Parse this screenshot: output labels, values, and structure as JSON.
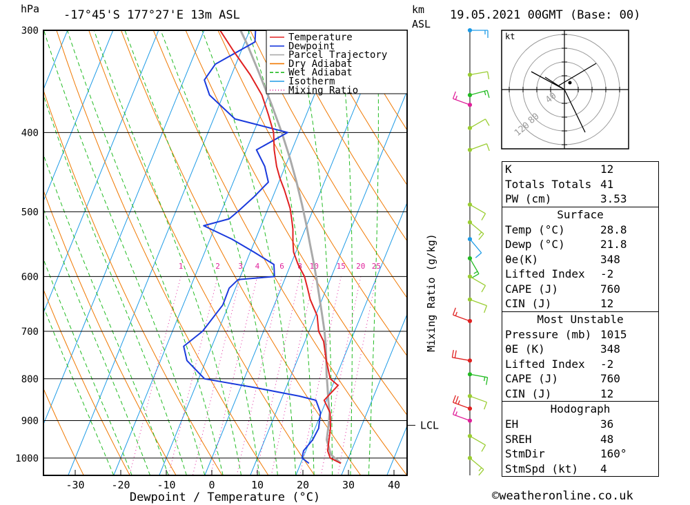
{
  "header": {
    "unit_hpa": "hPa",
    "location": "-17°45'S  177°27'E  13m  ASL",
    "km_label": "km",
    "asl_label": "ASL",
    "datetime": "19.05.2021  00GMT  (Base: 00)"
  },
  "credit": "©weatheronline.co.uk",
  "colors": {
    "temperature": "#e02020",
    "dewpoint": "#1a3adc",
    "parcel": "#aaaaaa",
    "dry_adiabat": "#f07800",
    "wet_adiabat": "#22bb22",
    "isotherm": "#1e9be6",
    "mixing_ratio": "#e0209a"
  },
  "chart_data": {
    "type": "line",
    "title": "-17°45'S 177°27'E 13m ASL 19.05.2021 00GMT (Base: 00)",
    "xlabel": "Dewpoint / Temperature (°C)",
    "ylabel": "hPa",
    "right_axis_label": "Mixing Ratio (g/kg)",
    "x_ticks": [
      -30,
      -20,
      -10,
      0,
      10,
      20,
      30,
      40
    ],
    "xlim": [
      -38,
      43
    ],
    "y_ticks": [
      300,
      400,
      500,
      600,
      700,
      800,
      900,
      1000
    ],
    "ylim": [
      300,
      1050
    ],
    "mixing_ratio_labels": [
      "1",
      "2",
      "3",
      "4",
      "6",
      "8",
      "10",
      "15",
      "20",
      "25"
    ],
    "legend": [
      "Temperature",
      "Dewpoint",
      "Parcel Trajectory",
      "Dry Adiabat",
      "Wet Adiabat",
      "Isotherm",
      "Mixing Ratio"
    ],
    "lcl_label": "LCL",
    "lcl_pressure": 912,
    "series": [
      {
        "name": "Temperature",
        "points": [
          [
            28.8,
            1015
          ],
          [
            26,
            1000
          ],
          [
            24.8,
            980
          ],
          [
            24.1,
            950
          ],
          [
            23.4,
            920
          ],
          [
            21.9,
            880
          ],
          [
            19.5,
            850
          ],
          [
            20.2,
            835
          ],
          [
            21.2,
            815
          ],
          [
            18.9,
            800
          ],
          [
            16.4,
            760
          ],
          [
            14.1,
            720
          ],
          [
            12.1,
            700
          ],
          [
            10.4,
            670
          ],
          [
            7.4,
            640
          ],
          [
            5.8,
            620
          ],
          [
            4.1,
            600
          ],
          [
            1.6,
            580
          ],
          [
            -0.5,
            560
          ],
          [
            -1.5,
            545
          ],
          [
            -2.1,
            535
          ],
          [
            -2.7,
            525
          ],
          [
            -3.9,
            510
          ],
          [
            -5.2,
            495
          ],
          [
            -8.1,
            470
          ],
          [
            -10.1,
            455
          ],
          [
            -11.9,
            440
          ],
          [
            -13.9,
            420
          ],
          [
            -15.6,
            400
          ],
          [
            -18.4,
            380
          ],
          [
            -21.5,
            360
          ],
          [
            -25.9,
            340
          ],
          [
            -31.7,
            318
          ],
          [
            -36.5,
            300
          ]
        ]
      },
      {
        "name": "Dewpoint",
        "points": [
          [
            21.8,
            1015
          ],
          [
            19.8,
            1000
          ],
          [
            19.5,
            980
          ],
          [
            20.5,
            950
          ],
          [
            20.8,
            920
          ],
          [
            19.8,
            880
          ],
          [
            17.7,
            850
          ],
          [
            13.6,
            840
          ],
          [
            3.1,
            820
          ],
          [
            -8.7,
            800
          ],
          [
            -14.2,
            760
          ],
          [
            -16.2,
            730
          ],
          [
            -13.4,
            700
          ],
          [
            -11.3,
            650
          ],
          [
            -11.4,
            620
          ],
          [
            -10.2,
            605
          ],
          [
            -2.5,
            600
          ],
          [
            -3.7,
            580
          ],
          [
            -9.2,
            560
          ],
          [
            -15.2,
            540
          ],
          [
            -22.6,
            520
          ],
          [
            -17.6,
            510
          ],
          [
            -16.4,
            500
          ],
          [
            -14.2,
            480
          ],
          [
            -12.3,
            460
          ],
          [
            -14.5,
            440
          ],
          [
            -17.8,
            420
          ],
          [
            -12.5,
            400
          ],
          [
            -25.3,
            385
          ],
          [
            -33.0,
            360
          ],
          [
            -35.5,
            345
          ],
          [
            -34.5,
            330
          ],
          [
            -27.8,
            310
          ],
          [
            -28.7,
            300
          ]
        ]
      },
      {
        "name": "Parcel Trajectory",
        "points": [
          [
            28.8,
            1015
          ],
          [
            25.8,
            990
          ],
          [
            23.6,
            950
          ],
          [
            22.7,
            912
          ],
          [
            21.8,
            880
          ],
          [
            20.4,
            850
          ],
          [
            19.1,
            820
          ],
          [
            17.7,
            790
          ],
          [
            16.4,
            760
          ],
          [
            15.0,
            730
          ],
          [
            13.4,
            700
          ],
          [
            11.5,
            670
          ],
          [
            9.5,
            640
          ],
          [
            7.4,
            610
          ],
          [
            5.1,
            580
          ],
          [
            2.6,
            550
          ],
          [
            0.0,
            520
          ],
          [
            -2.9,
            490
          ],
          [
            -6.1,
            460
          ],
          [
            -9.7,
            430
          ],
          [
            -13.8,
            400
          ],
          [
            -18.5,
            370
          ],
          [
            -23.8,
            340
          ],
          [
            -29.3,
            312
          ],
          [
            -32.0,
            300
          ]
        ]
      }
    ],
    "hodograph": {
      "unit": "kt",
      "ring_labels": [
        "40",
        "80",
        "120"
      ],
      "segments": [
        [
          [
            0,
            0
          ],
          [
            -48,
            26
          ]
        ],
        [
          [
            -8,
            6
          ],
          [
            46,
            38
          ]
        ],
        [
          [
            0,
            0
          ],
          [
            30,
            -62
          ]
        ],
        [
          [
            0,
            0
          ],
          [
            -28,
            18
          ]
        ]
      ]
    },
    "wind_barbs": [
      {
        "p": 300,
        "color": "#1e9be6",
        "speed": 15,
        "dir": 90
      },
      {
        "p": 340,
        "color": "#9acd32",
        "speed": 10,
        "dir": 80
      },
      {
        "p": 360,
        "color": "#22bb22",
        "speed": 15,
        "dir": 75
      },
      {
        "p": 370,
        "color": "#e0209a",
        "speed": 15,
        "dir": 290
      },
      {
        "p": 395,
        "color": "#9acd32",
        "speed": 10,
        "dir": 60
      },
      {
        "p": 420,
        "color": "#9acd32",
        "speed": 10,
        "dir": 70
      },
      {
        "p": 490,
        "color": "#9acd32",
        "speed": 10,
        "dir": 120
      },
      {
        "p": 515,
        "color": "#9acd32",
        "speed": 15,
        "dir": 130
      },
      {
        "p": 540,
        "color": "#1e9be6",
        "speed": 10,
        "dir": 140
      },
      {
        "p": 570,
        "color": "#22bb22",
        "speed": 15,
        "dir": 150
      },
      {
        "p": 600,
        "color": "#9acd32",
        "speed": 10,
        "dir": 120
      },
      {
        "p": 640,
        "color": "#9acd32",
        "speed": 10,
        "dir": 110
      },
      {
        "p": 680,
        "color": "#e02020",
        "speed": 15,
        "dir": 290
      },
      {
        "p": 760,
        "color": "#e02020",
        "speed": 20,
        "dir": 280
      },
      {
        "p": 790,
        "color": "#22bb22",
        "speed": 15,
        "dir": 100
      },
      {
        "p": 840,
        "color": "#9acd32",
        "speed": 10,
        "dir": 110
      },
      {
        "p": 870,
        "color": "#e02020",
        "speed": 25,
        "dir": 290
      },
      {
        "p": 900,
        "color": "#e0209a",
        "speed": 15,
        "dir": 290
      },
      {
        "p": 940,
        "color": "#9acd32",
        "speed": 10,
        "dir": 120
      },
      {
        "p": 1000,
        "color": "#9acd32",
        "speed": 15,
        "dir": 130
      }
    ]
  },
  "indices": {
    "rows": [
      {
        "label": "K",
        "value": "12"
      },
      {
        "label": "Totals Totals",
        "value": "41"
      },
      {
        "label": "PW (cm)",
        "value": "3.53"
      }
    ],
    "surface": {
      "title": "Surface",
      "rows": [
        {
          "label": "Temp (°C)",
          "value": "28.8"
        },
        {
          "label": "Dewp (°C)",
          "value": "21.8"
        },
        {
          "label": "θe(K)",
          "value": "348"
        },
        {
          "label": "Lifted Index",
          "value": "-2"
        },
        {
          "label": "CAPE (J)",
          "value": "760"
        },
        {
          "label": "CIN (J)",
          "value": "12"
        }
      ]
    },
    "most_unstable": {
      "title": "Most Unstable",
      "rows": [
        {
          "label": "Pressure (mb)",
          "value": "1015"
        },
        {
          "label": "θE (K)",
          "value": "348"
        },
        {
          "label": "Lifted Index",
          "value": "-2"
        },
        {
          "label": "CAPE (J)",
          "value": "760"
        },
        {
          "label": "CIN (J)",
          "value": "12"
        }
      ]
    },
    "hodograph": {
      "title": "Hodograph",
      "rows": [
        {
          "label": "EH",
          "value": "36"
        },
        {
          "label": "SREH",
          "value": "48"
        },
        {
          "label": "StmDir",
          "value": "160°"
        },
        {
          "label": "StmSpd (kt)",
          "value": "4"
        }
      ]
    }
  }
}
